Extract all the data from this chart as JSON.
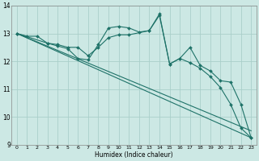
{
  "xlabel": "Humidex (Indice chaleur)",
  "bg_color": "#cce8e4",
  "grid_color": "#aacfca",
  "line_color": "#1e7268",
  "xlim": [
    -0.5,
    23.5
  ],
  "ylim": [
    9,
    14
  ],
  "yticks": [
    9,
    10,
    11,
    12,
    13,
    14
  ],
  "xticks": [
    0,
    1,
    2,
    3,
    4,
    5,
    6,
    7,
    8,
    9,
    10,
    11,
    12,
    13,
    14,
    15,
    16,
    17,
    18,
    19,
    20,
    21,
    22,
    23
  ],
  "series": [
    {
      "x": [
        0,
        1,
        2,
        3,
        4,
        5,
        6,
        7,
        8,
        9,
        10,
        11,
        12,
        13,
        14,
        15,
        16,
        17,
        18,
        19,
        20,
        21,
        22,
        23
      ],
      "y": [
        13.0,
        12.9,
        12.9,
        12.65,
        12.55,
        12.45,
        12.1,
        12.05,
        12.6,
        13.2,
        13.25,
        13.2,
        13.05,
        13.1,
        13.65,
        11.9,
        12.1,
        11.95,
        11.75,
        11.45,
        11.05,
        10.45,
        9.6,
        9.25
      ],
      "marker": true,
      "markersize": 2.0,
      "linewidth": 0.8
    },
    {
      "x": [
        0,
        3,
        4,
        5,
        6,
        7,
        8,
        9,
        10,
        11,
        13,
        14,
        15,
        16,
        17,
        18,
        19,
        20,
        21,
        22,
        23
      ],
      "y": [
        13.0,
        12.65,
        12.6,
        12.5,
        12.5,
        12.2,
        12.5,
        12.85,
        12.95,
        12.95,
        13.1,
        13.7,
        11.9,
        12.1,
        12.5,
        11.85,
        11.65,
        11.3,
        11.25,
        10.45,
        9.25
      ],
      "marker": true,
      "markersize": 2.0,
      "linewidth": 0.8
    },
    {
      "x": [
        0,
        23
      ],
      "y": [
        13.0,
        9.25
      ],
      "marker": false,
      "markersize": 0,
      "linewidth": 0.8
    },
    {
      "x": [
        0,
        23
      ],
      "y": [
        13.0,
        9.5
      ],
      "marker": false,
      "markersize": 0,
      "linewidth": 0.8
    }
  ]
}
